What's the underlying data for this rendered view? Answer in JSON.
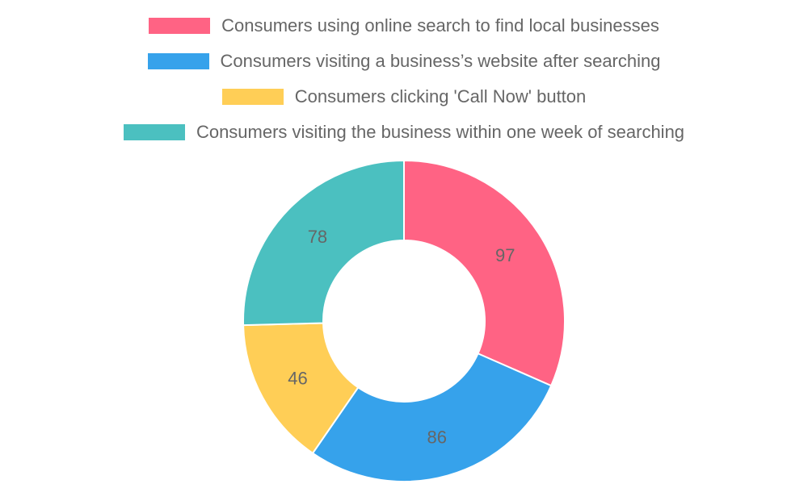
{
  "chart_data": {
    "type": "doughnut",
    "categories": [
      "Consumers using online search to find local businesses",
      "Consumers visiting a business’s website after searching",
      "Consumers clicking 'Call Now' button",
      "Consumers visiting the business within one week of searching"
    ],
    "values": [
      97,
      86,
      46,
      78
    ],
    "colors": [
      "#ff6384",
      "#36a2eb",
      "#ffce56",
      "#4bc0c0"
    ],
    "legend_position": "top",
    "data_labels": true
  }
}
